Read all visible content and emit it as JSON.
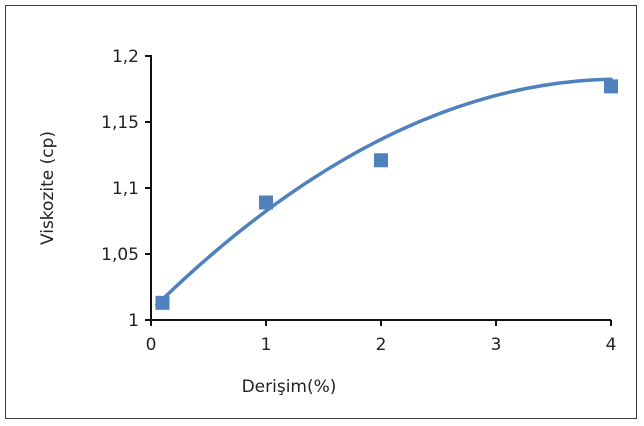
{
  "chart_data": {
    "type": "scatter",
    "xlabel": "Derişim(%)",
    "ylabel": "Viskozite (cp)",
    "xlim": [
      0,
      4
    ],
    "ylim": [
      1,
      1.2
    ],
    "x_ticks": [
      0,
      1,
      2,
      3,
      4
    ],
    "x_tick_labels": [
      "0",
      "1",
      "2",
      "3",
      "4"
    ],
    "y_ticks": [
      1,
      1.05,
      1.1,
      1.15,
      1.2
    ],
    "y_tick_labels": [
      "1",
      "1,05",
      "1,1",
      "1,15",
      "1,2"
    ],
    "grid": false,
    "legend": "none",
    "series": [
      {
        "marker": "square",
        "color": "#4f81bd",
        "x": [
          0.1,
          1,
          2,
          4
        ],
        "y": [
          1.013,
          1.089,
          1.121,
          1.177
        ]
      }
    ],
    "trendline": {
      "type": "polynomial",
      "color": "#4f81bd",
      "x_range": [
        0.05,
        4
      ],
      "coefficients": [
        1.0072,
        0.0858,
        -0.0105
      ]
    }
  }
}
